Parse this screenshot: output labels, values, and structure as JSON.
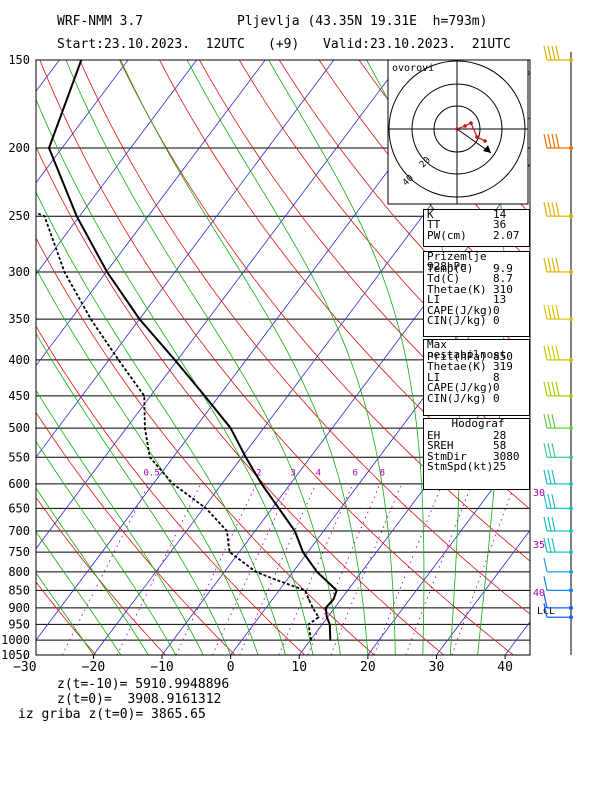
{
  "header": {
    "model": "WRF-NMM 3.7",
    "station": "Pljevlja (43.35N 19.31E  h=793m)",
    "start": "Start:23.10.2023.  12UTC",
    "offset": "(+9)",
    "valid": "Valid:23.10.2023.  21UTC"
  },
  "hodograph_label": "ovorovi",
  "indices_panel": {
    "rows": [
      {
        "key": "K",
        "value": "14"
      },
      {
        "key": "TT",
        "value": "36"
      },
      {
        "key": "PW(cm)",
        "value": "2.07"
      }
    ]
  },
  "surface_panel": {
    "title": "Prizemlje 928hPa",
    "rows": [
      {
        "key": "Temp(C)",
        "value": "9.9"
      },
      {
        "key": "Td(C)",
        "value": "8.7"
      },
      {
        "key": "Thetae(K)",
        "value": "310"
      },
      {
        "key": "LI",
        "value": "13"
      },
      {
        "key": "CAPE(J/kg)",
        "value": "0"
      },
      {
        "key": "CIN(J/kg)",
        "value": "0"
      }
    ]
  },
  "unstable_panel": {
    "title": "Max nestabilnost",
    "rows": [
      {
        "key": "Prit(hPa)",
        "value": "850"
      },
      {
        "key": "Thetae(K)",
        "value": "319"
      },
      {
        "key": "LI",
        "value": "8"
      },
      {
        "key": "CAPE(J/kg)",
        "value": "0"
      },
      {
        "key": "CIN(J/kg)",
        "value": "0"
      }
    ]
  },
  "hodograph_panel": {
    "title": "Hodograf",
    "rows": [
      {
        "key": "EH",
        "value": "28"
      },
      {
        "key": "SREH",
        "value": "58"
      },
      {
        "key": "StmDir",
        "value": "3080"
      },
      {
        "key": "StmSpd(kt)",
        "value": "25"
      }
    ]
  },
  "footer": {
    "line1": "z(t=-10)= 5910.9948896",
    "line2": "z(t=0)=  3908.9161312",
    "line3": "iz griba z(t=0)= 3865.65"
  },
  "colors": {
    "isotherm": "#2b2bd0",
    "dry_adiabat": "#e01010",
    "moist_adiabat": "#10b010",
    "mixing_ratio": "#b000b0",
    "wind_upper": "#e0b000",
    "wind_mid": "#c8c800",
    "wind_low": "#20c0c0",
    "wind_surface": "#1060ff",
    "dry_adiabat_200": "#f07000"
  },
  "chart_data": {
    "type": "skew-t",
    "pressure_levels": [
      150,
      200,
      250,
      300,
      350,
      400,
      450,
      500,
      550,
      600,
      650,
      700,
      750,
      800,
      850,
      900,
      950,
      1000,
      1050
    ],
    "x_ticks": [
      -30,
      -20,
      -10,
      0,
      10,
      20,
      30,
      40
    ],
    "x_range": [
      -30,
      42
    ],
    "p_range": [
      150,
      1050
    ],
    "mixing_ratio_labels": [
      "0.5",
      "2",
      "3",
      "4",
      "6",
      "8"
    ],
    "right_side_labels": [
      "30",
      "35",
      "40"
    ],
    "lcl_label": "LCL",
    "temperature": [
      {
        "p": 1000,
        "t": 12.9
      },
      {
        "p": 950,
        "t": 11.1
      },
      {
        "p": 928,
        "t": 9.9
      },
      {
        "p": 900,
        "t": 8.7
      },
      {
        "p": 875,
        "t": 8.9
      },
      {
        "p": 850,
        "t": 8.4
      },
      {
        "p": 800,
        "t": 3.5
      },
      {
        "p": 750,
        "t": -0.7
      },
      {
        "p": 700,
        "t": -4.2
      },
      {
        "p": 650,
        "t": -9.0
      },
      {
        "p": 600,
        "t": -14.2
      },
      {
        "p": 550,
        "t": -19.4
      },
      {
        "p": 500,
        "t": -24.8
      },
      {
        "p": 450,
        "t": -32.1
      },
      {
        "p": 400,
        "t": -40.4
      },
      {
        "p": 350,
        "t": -50.0
      },
      {
        "p": 300,
        "t": -59.9
      },
      {
        "p": 250,
        "t": -70.4
      },
      {
        "p": 200,
        "t": -81.9
      },
      {
        "p": 150,
        "t": -86.8
      }
    ],
    "dewpoint": [
      {
        "p": 1000,
        "t": 10.1
      },
      {
        "p": 950,
        "t": 8.0
      },
      {
        "p": 928,
        "t": 8.7
      },
      {
        "p": 900,
        "t": 6.8
      },
      {
        "p": 875,
        "t": 5.3
      },
      {
        "p": 850,
        "t": 3.8
      },
      {
        "p": 820,
        "t": -1.8
      },
      {
        "p": 800,
        "t": -5.4
      },
      {
        "p": 750,
        "t": -11.4
      },
      {
        "p": 700,
        "t": -14.1
      },
      {
        "p": 650,
        "t": -19.6
      },
      {
        "p": 600,
        "t": -27.1
      },
      {
        "p": 550,
        "t": -33.4
      },
      {
        "p": 500,
        "t": -37.3
      },
      {
        "p": 450,
        "t": -40.9
      },
      {
        "p": 400,
        "t": -48.6
      },
      {
        "p": 350,
        "t": -57.1
      },
      {
        "p": 300,
        "t": -66.1
      },
      {
        "p": 250,
        "t": -75.1
      },
      {
        "p": 200,
        "t": -107.2
      },
      {
        "p": 150,
        "t": -108.0
      }
    ],
    "wind_barbs": [
      {
        "p": 150,
        "color": "#e0b000"
      },
      {
        "p": 200,
        "color": "#f07000"
      },
      {
        "p": 250,
        "color": "#e0b000"
      },
      {
        "p": 300,
        "color": "#e0b000"
      },
      {
        "p": 350,
        "color": "#e0c000"
      },
      {
        "p": 400,
        "color": "#c8c800"
      },
      {
        "p": 450,
        "color": "#a0d000"
      },
      {
        "p": 500,
        "color": "#60d040"
      },
      {
        "p": 550,
        "color": "#40c8a0"
      },
      {
        "p": 600,
        "color": "#20c0c0"
      },
      {
        "p": 650,
        "color": "#20c0c0"
      },
      {
        "p": 700,
        "color": "#20c0c0"
      },
      {
        "p": 750,
        "color": "#20c0c0"
      },
      {
        "p": 800,
        "color": "#20a0e0"
      },
      {
        "p": 850,
        "color": "#1080ff"
      },
      {
        "p": 900,
        "color": "#1060ff"
      },
      {
        "p": 928,
        "color": "#1060ff"
      }
    ],
    "hodograph": {
      "rings": 3,
      "points": [
        [
          0,
          0
        ],
        [
          8,
          -3
        ],
        [
          14,
          -6
        ],
        [
          20,
          8
        ],
        [
          28,
          12
        ]
      ],
      "storm_arrow": {
        "from": [
          0,
          0
        ],
        "to": [
          34,
          24
        ]
      },
      "ring_labels": [
        "20",
        "40"
      ]
    }
  }
}
